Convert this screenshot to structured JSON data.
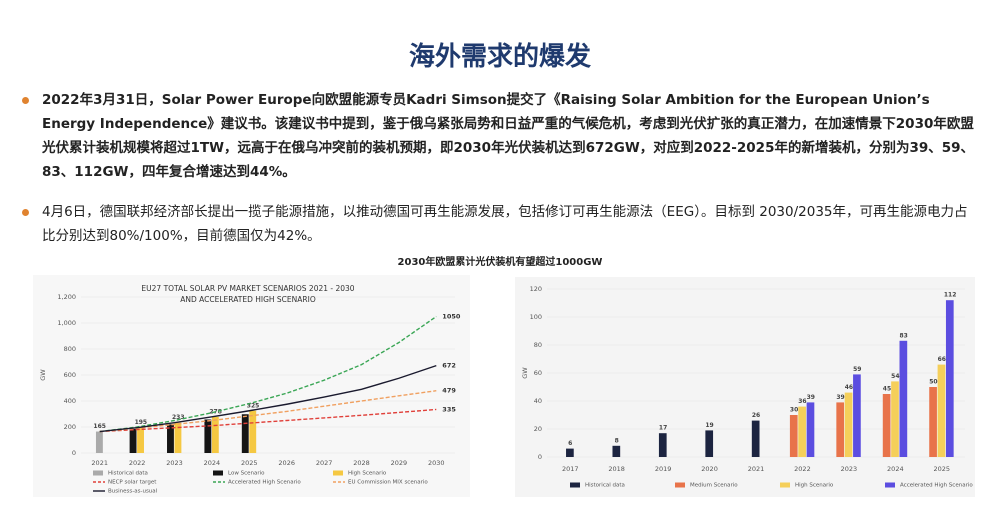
{
  "title": "海外需求的爆发",
  "bullets": [
    "2022年3月31日，Solar Power Europe向欧盟能源专员Kadri Simson提交了《Raising Solar Ambition for the European Union’s Energy Independence》建议书。该建议书中提到，鉴于俄乌紧张局势和日益严重的气候危机，考虑到光伏扩张的真正潜力，在加速情景下2030年欧盟光伏累计装机规模将超过1TW，远高于在俄乌冲突前的装机预期，即2030年光伏装机达到672GW，对应到2022-2025年的新增装机，分别为39、59、83、112GW，四年复合增速达到44%。",
    "4月6日，德国联邦经济部长提出一揽子能源措施，以推动德国可再生能源发展，包括修订可再生能源法（EEG）。目标到 2030/2035年，可再生能源电力占比分别达到80%/100%，目前德国仅为42%。"
  ],
  "caption": "2030年欧盟累计光伏装机有望超过1000GW",
  "chart_data": [
    {
      "type": "combo",
      "title": "EU27 TOTAL SOLAR PV MARKET SCENARIOS 2021 - 2030 AND ACCELERATED HIGH SCENARIO",
      "y_label": "GW",
      "categories": [
        "2021",
        "2022",
        "2023",
        "2024",
        "2025",
        "2026",
        "2027",
        "2028",
        "2029",
        "2030"
      ],
      "ylim": [
        0,
        1200
      ],
      "yticks": [
        0,
        200,
        400,
        600,
        800,
        {
          "value": 1000,
          "label": "1,000"
        },
        {
          "value": 1200,
          "label": "1,200"
        }
      ],
      "grid": true,
      "series": [
        {
          "name": "Historical data",
          "type": "bar",
          "color": "#aaaaaa",
          "show_labels": true,
          "values": [
            165,
            null,
            null,
            null,
            null,
            null,
            null,
            null,
            null,
            null
          ]
        },
        {
          "name": "Low Scenario",
          "type": "bar",
          "color": "#151515",
          "values": [
            null,
            185,
            220,
            258,
            298,
            null,
            null,
            null,
            null,
            null
          ]
        },
        {
          "name": "High Scenario",
          "type": "bar",
          "color": "#f5c842",
          "show_labels": true,
          "values": [
            null,
            195,
            233,
            278,
            325,
            null,
            null,
            null,
            null,
            null
          ]
        },
        {
          "name": "NECP solar target",
          "type": "line",
          "dash": true,
          "color": "#e0403a",
          "end_label": true,
          "values": [
            165,
            180,
            195,
            210,
            230,
            250,
            270,
            290,
            312,
            335
          ]
        },
        {
          "name": "Accelerated High Scenario",
          "type": "line",
          "dash": true,
          "color": "#3aa655",
          "end_label": true,
          "values": [
            165,
            200,
            250,
            310,
            380,
            460,
            560,
            680,
            850,
            1050
          ]
        },
        {
          "name": "EU Commission MIX scenario",
          "type": "line",
          "dash": true,
          "color": "#f0a060",
          "end_label": true,
          "values": [
            165,
            190,
            220,
            250,
            285,
            320,
            360,
            400,
            440,
            479
          ]
        },
        {
          "name": "Business-as-usual",
          "type": "line",
          "color": "#1a1a2e",
          "end_label": true,
          "values": [
            165,
            195,
            233,
            278,
            325,
            375,
            430,
            490,
            575,
            672
          ]
        }
      ]
    },
    {
      "type": "bar",
      "y_label": "GW",
      "categories": [
        "2017",
        "2018",
        "2019",
        "2020",
        "2021",
        "2022",
        "2023",
        "2024",
        "2025"
      ],
      "ylim": [
        0,
        120
      ],
      "yticks": [
        0,
        20,
        40,
        60,
        80,
        100,
        120
      ],
      "grid": true,
      "series": [
        {
          "name": "Historical data",
          "type": "bar",
          "color": "#1c2440",
          "show_labels": true,
          "values": [
            6,
            8,
            17,
            19,
            26,
            null,
            null,
            null,
            null
          ]
        },
        {
          "name": "Medium Scenario",
          "type": "bar",
          "color": "#e8734a",
          "show_labels": true,
          "values": [
            null,
            null,
            null,
            null,
            null,
            30,
            39,
            45,
            50
          ]
        },
        {
          "name": "High Scenario",
          "type": "bar",
          "color": "#f5cf5a",
          "show_labels": true,
          "values": [
            null,
            null,
            null,
            null,
            null,
            36,
            46,
            54,
            66
          ]
        },
        {
          "name": "Accelerated High Scenario",
          "type": "bar",
          "color": "#5b4de0",
          "show_labels": true,
          "values": [
            null,
            null,
            null,
            null,
            null,
            39,
            59,
            83,
            112
          ]
        }
      ]
    }
  ]
}
